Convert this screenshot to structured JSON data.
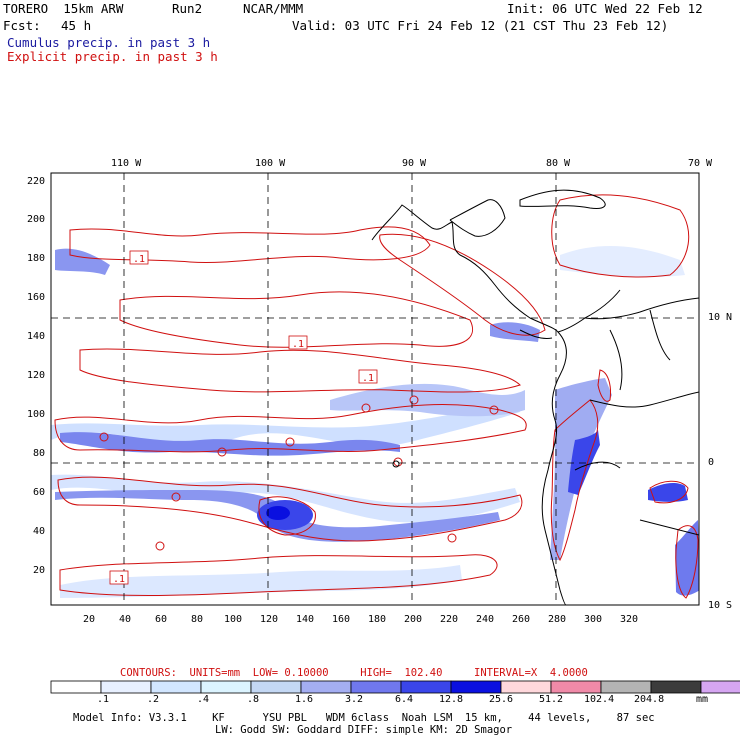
{
  "header": {
    "model": "TORERO  15km ARW",
    "run": "Run2",
    "org": "NCAR/MMM",
    "init": "Init: 06 UTC Wed 22 Feb 12",
    "fcst_label": "Fcst:",
    "fcst_value": "45 h",
    "valid": "Valid: 03 UTC Fri 24 Feb 12 (21 CST Thu 23 Feb 12)",
    "legend_cumulus": "Cumulus precip. in past 3 h",
    "legend_explicit": "Explicit precip. in past 3 h"
  },
  "axes": {
    "top_lon": [
      "110 W",
      "100 W",
      "90 W",
      "80 W",
      "70 W"
    ],
    "right_lat": [
      "10 N",
      "0",
      "10 S"
    ],
    "y_ticks": [
      "220",
      "200",
      "180",
      "160",
      "140",
      "120",
      "100",
      "80",
      "60",
      "40",
      "20"
    ],
    "x_ticks": [
      "20",
      "40",
      "60",
      "80",
      "100",
      "120",
      "140",
      "160",
      "180",
      "200",
      "220",
      "240",
      "260",
      "280",
      "300",
      "320"
    ]
  },
  "contour_labels": [
    ".1",
    ".1",
    ".1",
    ".1"
  ],
  "footer": {
    "contours_info": "CONTOURS:  UNITS=mm  LOW= 0.10000     HIGH=  102.40     INTERVAL=X  4.0000",
    "scale_labels": [
      ".1",
      ".2",
      ".4",
      ".8",
      "1.6",
      "3.2",
      "6.4",
      "12.8",
      "25.6",
      "51.2",
      "102.4",
      "204.8"
    ],
    "scale_unit": "mm",
    "scale_colors": [
      "#ffffff",
      "#e8f0ff",
      "#d2e6ff",
      "#dcf4ff",
      "#c4d8f4",
      "#a4aef2",
      "#7078ee",
      "#3a46ea",
      "#0a10e0",
      "#ffd8dc",
      "#f08aa8",
      "#b4b4b4",
      "#3c3c3c",
      "#d6a6f2"
    ],
    "model_info": "Model Info: V3.3.1    KF      YSU PBL   WDM 6class  Noah LSM  15 km,    44 levels,    87 sec",
    "model_info2": "LW: Godd SW: Goddard DIFF: simple KM: 2D Smagor"
  }
}
